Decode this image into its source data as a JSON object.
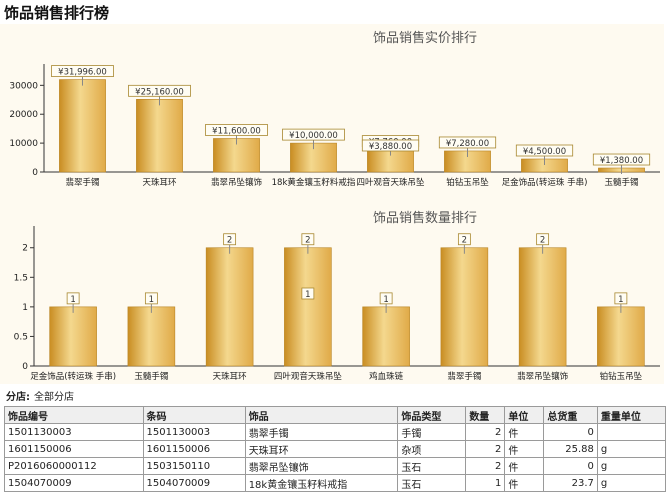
{
  "page": {
    "title": "饰品销售排行榜"
  },
  "charts": {
    "amount": {
      "title": "饰品销售实价排行"
    },
    "quantity": {
      "title": "饰品销售数量排行"
    }
  },
  "colors": {
    "bar": "#e0aa48",
    "bar_light": "#f4d88e",
    "bar_dark": "#c98d22",
    "panel": "#fefaf0",
    "label_border": "#a88830"
  },
  "chart_data": [
    {
      "type": "bar",
      "title": "饰品销售实价排行",
      "categories": [
        "翡翠手镯",
        "天珠耳环",
        "翡翠吊坠镶饰",
        "18k黄金镶玉籽料戒指",
        "四叶观音天珠吊坠",
        "铂钻玉吊坠",
        "足金饰品(转运珠 手串)",
        "玉髓手镯"
      ],
      "values": [
        31996,
        25160,
        11600,
        10000,
        7760,
        7280,
        4500,
        1380
      ],
      "data_labels": [
        "¥31,996.00",
        "¥25,160.00",
        "¥11,600.00",
        "¥10,000.00",
        "¥7,760.00",
        "¥7,280.00",
        "¥4,500.00",
        "¥1,380.00"
      ],
      "overlap_label": "¥3,880.00",
      "yticks": [
        "0",
        "10000",
        "20000",
        "30000"
      ],
      "ylim": [
        0,
        36000
      ],
      "grid": false
    },
    {
      "type": "bar",
      "title": "饰品销售数量排行",
      "categories": [
        "足金饰品(转运珠 手串)",
        "玉髓手镯",
        "天珠耳环",
        "四叶观音天珠吊坠",
        "鸡血珠链",
        "翡翠手镯",
        "翡翠吊坠镶饰",
        "铂钻玉吊坠"
      ],
      "values": [
        1,
        1,
        2,
        2,
        1,
        2,
        2,
        1
      ],
      "data_labels": [
        "1",
        "1",
        "2",
        "2",
        "1",
        "2",
        "2",
        "1"
      ],
      "overlap_label": "1",
      "yticks": [
        "0",
        "0.5",
        "1",
        "1.5",
        "2"
      ],
      "ylim": [
        0,
        2.3
      ],
      "grid": false
    }
  ],
  "filter": {
    "label": "分店:",
    "value": "全部分店"
  },
  "table": {
    "headers": [
      "饰品编号",
      "条码",
      "饰品",
      "饰品类型",
      "数量",
      "单位",
      "总货重",
      "重量单位"
    ],
    "rows": [
      [
        "1501130003",
        "1501130003",
        "翡翠手镯",
        "手镯",
        "2",
        "件",
        "0",
        ""
      ],
      [
        "1601150006",
        "1601150006",
        "天珠耳环",
        "杂项",
        "2",
        "件",
        "25.88",
        "g"
      ],
      [
        "P2016060000112",
        "1503150110",
        "翡翠吊坠镶饰",
        "玉石",
        "2",
        "件",
        "0",
        "g"
      ],
      [
        "1504070009",
        "1504070009",
        "18k黄金镶玉籽料戒指",
        "玉石",
        "1",
        "件",
        "23.7",
        "g"
      ]
    ]
  }
}
